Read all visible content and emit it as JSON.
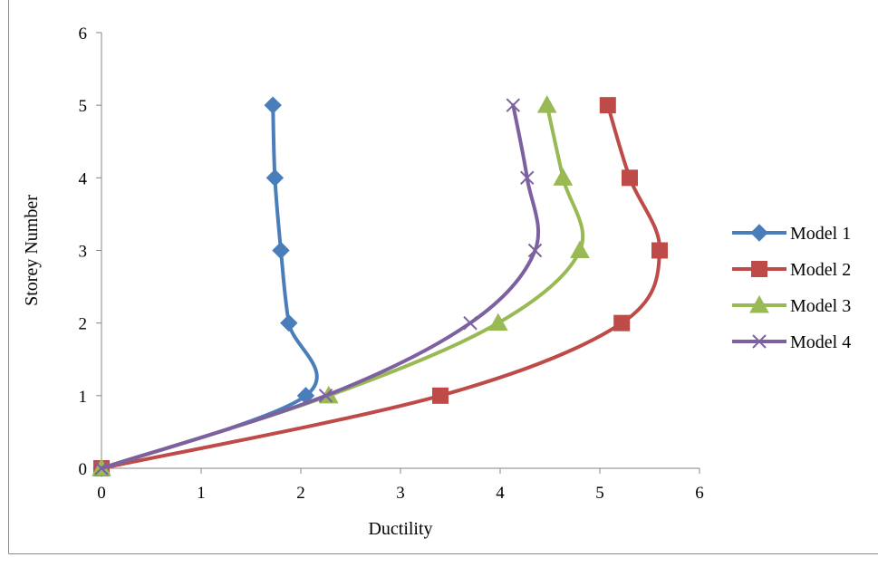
{
  "chart_data": {
    "type": "line",
    "smooth": true,
    "xlabel": "Ductility",
    "ylabel": "Storey Number",
    "xlim": [
      0,
      6
    ],
    "ylim": [
      0,
      6
    ],
    "x_ticks": [
      "0",
      "1",
      "2",
      "3",
      "4",
      "5",
      "6"
    ],
    "y_ticks": [
      "0",
      "1",
      "2",
      "3",
      "4",
      "5",
      "6"
    ],
    "grid": false,
    "legend_position": "right",
    "series": [
      {
        "name": "Model 1",
        "color": "#4A7EBB",
        "marker": "diamond",
        "points": [
          [
            0,
            0
          ],
          [
            2.05,
            1
          ],
          [
            1.88,
            2
          ],
          [
            1.8,
            3
          ],
          [
            1.74,
            4
          ],
          [
            1.72,
            5
          ]
        ]
      },
      {
        "name": "Model 2",
        "color": "#BE4B48",
        "marker": "square",
        "points": [
          [
            0,
            0
          ],
          [
            3.4,
            1
          ],
          [
            5.22,
            2
          ],
          [
            5.6,
            3
          ],
          [
            5.3,
            4
          ],
          [
            5.08,
            5
          ]
        ]
      },
      {
        "name": "Model 3",
        "color": "#98B954",
        "marker": "triangle",
        "points": [
          [
            0,
            0
          ],
          [
            2.28,
            1
          ],
          [
            3.98,
            2
          ],
          [
            4.8,
            3
          ],
          [
            4.63,
            4
          ],
          [
            4.47,
            5
          ]
        ]
      },
      {
        "name": "Model 4",
        "color": "#7D60A0",
        "marker": "x",
        "points": [
          [
            0,
            0
          ],
          [
            2.25,
            1
          ],
          [
            3.7,
            2
          ],
          [
            4.35,
            3
          ],
          [
            4.27,
            4
          ],
          [
            4.13,
            5
          ]
        ]
      }
    ]
  }
}
